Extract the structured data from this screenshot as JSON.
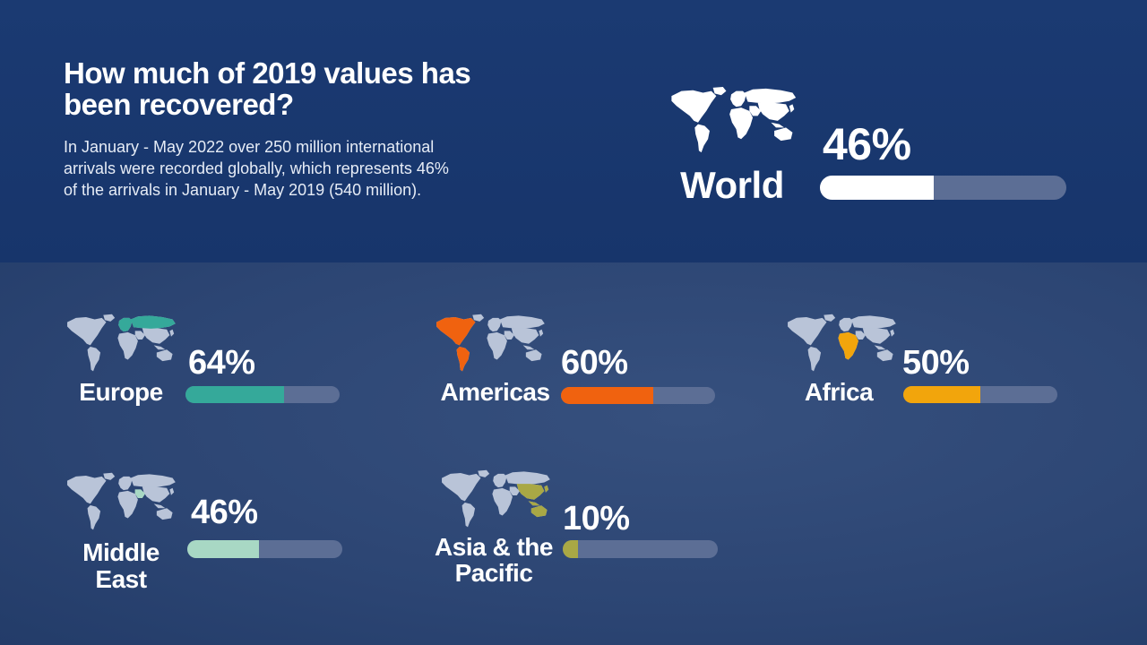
{
  "title": "How much of 2019 values has been recovered?",
  "description": "In January - May 2022 over 250 million international arrivals were recorded globally, which represents 46% of the arrivals in January - May 2019 (540 million).",
  "colors": {
    "world": "#ffffff",
    "europe": "#35a99a",
    "americas": "#f0620f",
    "africa": "#f2a50c",
    "middle_east": "#a8d8c4",
    "asia_pacific": "#a9a845",
    "track": "#5c6e95",
    "map_land": "#b9c4d8"
  },
  "chart_data": {
    "type": "bar",
    "unit": "%",
    "categories": [
      "World",
      "Europe",
      "Americas",
      "Africa",
      "Middle East",
      "Asia & the Pacific"
    ],
    "values": [
      46,
      64,
      60,
      50,
      46,
      10
    ],
    "labels": [
      "46%",
      "64%",
      "60%",
      "50%",
      "46%",
      "10%"
    ],
    "xlim": [
      0,
      100
    ]
  },
  "regions": [
    {
      "key": "world",
      "name": "World",
      "value": 46,
      "label": "46%",
      "color": "#ffffff",
      "map_icon": "world-map-icon"
    },
    {
      "key": "europe",
      "name": "Europe",
      "value": 64,
      "label": "64%",
      "color": "#35a99a",
      "map_icon": "world-map-europe-icon"
    },
    {
      "key": "americas",
      "name": "Americas",
      "value": 60,
      "label": "60%",
      "color": "#f0620f",
      "map_icon": "world-map-americas-icon"
    },
    {
      "key": "africa",
      "name": "Africa",
      "value": 50,
      "label": "50%",
      "color": "#f2a50c",
      "map_icon": "world-map-africa-icon"
    },
    {
      "key": "middle_east",
      "name": "Middle East",
      "value": 46,
      "label": "46%",
      "color": "#a8d8c4",
      "map_icon": "world-map-middle-east-icon"
    },
    {
      "key": "asia_pacific",
      "name": "Asia & the Pacific",
      "value": 10,
      "label": "10%",
      "color": "#a9a845",
      "map_icon": "world-map-asia-pacific-icon"
    }
  ]
}
